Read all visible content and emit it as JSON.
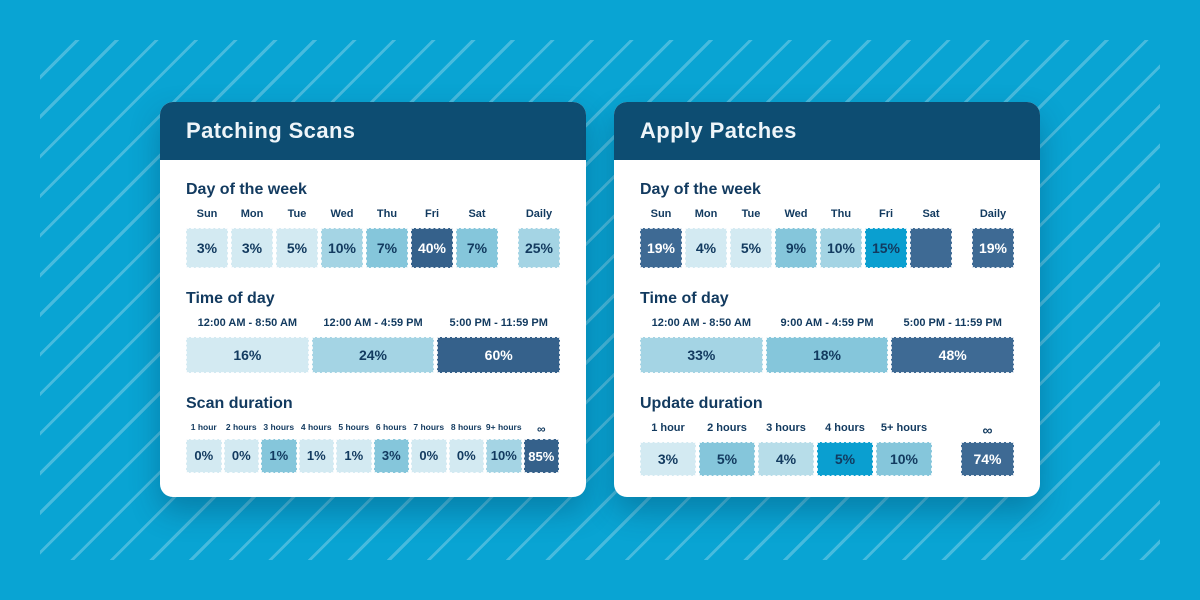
{
  "palette": {
    "background": "#09a4d3",
    "stripe": "rgba(255,255,255,0.25)",
    "header_bg": "#0d4d72",
    "card_bg": "#ffffff",
    "ink": "#123a5f",
    "tones": {
      "lightest": "#d3eaf2",
      "light": "#b7dde9",
      "lightmed": "#a4d4e4",
      "medium": "#85c6db",
      "bright": "#0a9fd0",
      "dark": "#35618b",
      "darksteel": "#3e6a94"
    }
  },
  "cards": [
    {
      "title": "Patching Scans",
      "sections": [
        {
          "heading": "Day of the week",
          "cells": [
            {
              "label": "Sun",
              "value": "3%",
              "tone": "lightest"
            },
            {
              "label": "Mon",
              "value": "3%",
              "tone": "lightest"
            },
            {
              "label": "Tue",
              "value": "5%",
              "tone": "lightest"
            },
            {
              "label": "Wed",
              "value": "10%",
              "tone": "lightmed"
            },
            {
              "label": "Thu",
              "value": "7%",
              "tone": "medium"
            },
            {
              "label": "Fri",
              "value": "40%",
              "tone": "dark"
            },
            {
              "label": "Sat",
              "value": "7%",
              "tone": "medium"
            },
            {
              "label": "Daily",
              "value": "25%",
              "tone": "lightmed",
              "separated": true
            }
          ]
        },
        {
          "heading": "Time of day",
          "cells": [
            {
              "label": "12:00 AM - 8:50 AM",
              "value": "16%",
              "tone": "lightest"
            },
            {
              "label": "12:00 AM - 4:59 PM",
              "value": "24%",
              "tone": "lightmed"
            },
            {
              "label": "5:00 PM - 11:59 PM",
              "value": "60%",
              "tone": "dark"
            }
          ]
        },
        {
          "heading": "Scan duration",
          "cells": [
            {
              "label": "1 hour",
              "value": "0%",
              "tone": "lightest"
            },
            {
              "label": "2 hours",
              "value": "0%",
              "tone": "lightest"
            },
            {
              "label": "3 hours",
              "value": "1%",
              "tone": "medium"
            },
            {
              "label": "4 hours",
              "value": "1%",
              "tone": "lightest"
            },
            {
              "label": "5 hours",
              "value": "1%",
              "tone": "lightest"
            },
            {
              "label": "6 hours",
              "value": "3%",
              "tone": "medium"
            },
            {
              "label": "7 hours",
              "value": "0%",
              "tone": "lightest"
            },
            {
              "label": "8 hours",
              "value": "0%",
              "tone": "lightest"
            },
            {
              "label": "9+ hours",
              "value": "10%",
              "tone": "lightmed"
            },
            {
              "label": "∞",
              "value": "85%",
              "tone": "dark"
            }
          ]
        }
      ]
    },
    {
      "title": "Apply Patches",
      "sections": [
        {
          "heading": "Day of the week",
          "cells": [
            {
              "label": "Sun",
              "value": "19%",
              "tone": "darksteel"
            },
            {
              "label": "Mon",
              "value": "4%",
              "tone": "lightest"
            },
            {
              "label": "Tue",
              "value": "5%",
              "tone": "lightest"
            },
            {
              "label": "Wed",
              "value": "9%",
              "tone": "medium"
            },
            {
              "label": "Thu",
              "value": "10%",
              "tone": "lightmed"
            },
            {
              "label": "Fri",
              "value": "15%",
              "tone": "bright"
            },
            {
              "label": "Sat",
              "value": "",
              "tone": "darksteel"
            },
            {
              "label": "Daily",
              "value": "19%",
              "tone": "darksteel",
              "separated": true
            }
          ]
        },
        {
          "heading": "Time of day",
          "cells": [
            {
              "label": "12:00 AM - 8:50 AM",
              "value": "33%",
              "tone": "lightmed"
            },
            {
              "label": "9:00 AM - 4:59 PM",
              "value": "18%",
              "tone": "medium"
            },
            {
              "label": "5:00 PM - 11:59 PM",
              "value": "48%",
              "tone": "darksteel"
            }
          ]
        },
        {
          "heading": "Update duration",
          "cells": [
            {
              "label": "1 hour",
              "value": "3%",
              "tone": "lightest"
            },
            {
              "label": "2 hours",
              "value": "5%",
              "tone": "medium"
            },
            {
              "label": "3 hours",
              "value": "4%",
              "tone": "light"
            },
            {
              "label": "4 hours",
              "value": "5%",
              "tone": "bright"
            },
            {
              "label": "5+ hours",
              "value": "10%",
              "tone": "medium"
            },
            {
              "label": "∞",
              "value": "74%",
              "tone": "darksteel",
              "separated": true
            }
          ]
        }
      ]
    }
  ],
  "chart_data": [
    {
      "type": "heatmap",
      "title": "Patching Scans",
      "groups": [
        {
          "label": "Day of the week",
          "categories": [
            "Sun",
            "Mon",
            "Tue",
            "Wed",
            "Thu",
            "Fri",
            "Sat",
            "Daily"
          ],
          "values": [
            3,
            3,
            5,
            10,
            7,
            40,
            7,
            25
          ]
        },
        {
          "label": "Time of day",
          "categories": [
            "12:00 AM - 8:50 AM",
            "12:00 AM - 4:59 PM",
            "5:00 PM - 11:59 PM"
          ],
          "values": [
            16,
            24,
            60
          ]
        },
        {
          "label": "Scan duration",
          "categories": [
            "1 hour",
            "2 hours",
            "3 hours",
            "4 hours",
            "5 hours",
            "6 hours",
            "7 hours",
            "8 hours",
            "9+ hours",
            "∞"
          ],
          "values": [
            0,
            0,
            1,
            1,
            1,
            3,
            0,
            0,
            10,
            85
          ]
        }
      ],
      "unit": "percent"
    },
    {
      "type": "heatmap",
      "title": "Apply Patches",
      "groups": [
        {
          "label": "Day of the week",
          "categories": [
            "Sun",
            "Mon",
            "Tue",
            "Wed",
            "Thu",
            "Fri",
            "Sat",
            "Daily"
          ],
          "values": [
            19,
            4,
            5,
            9,
            10,
            15,
            null,
            19
          ]
        },
        {
          "label": "Time of day",
          "categories": [
            "12:00 AM - 8:50 AM",
            "9:00 AM - 4:59 PM",
            "5:00 PM - 11:59 PM"
          ],
          "values": [
            33,
            18,
            48
          ]
        },
        {
          "label": "Update duration",
          "categories": [
            "1 hour",
            "2 hours",
            "3 hours",
            "4 hours",
            "5+ hours",
            "∞"
          ],
          "values": [
            3,
            5,
            4,
            5,
            10,
            74
          ]
        }
      ],
      "unit": "percent"
    }
  ]
}
